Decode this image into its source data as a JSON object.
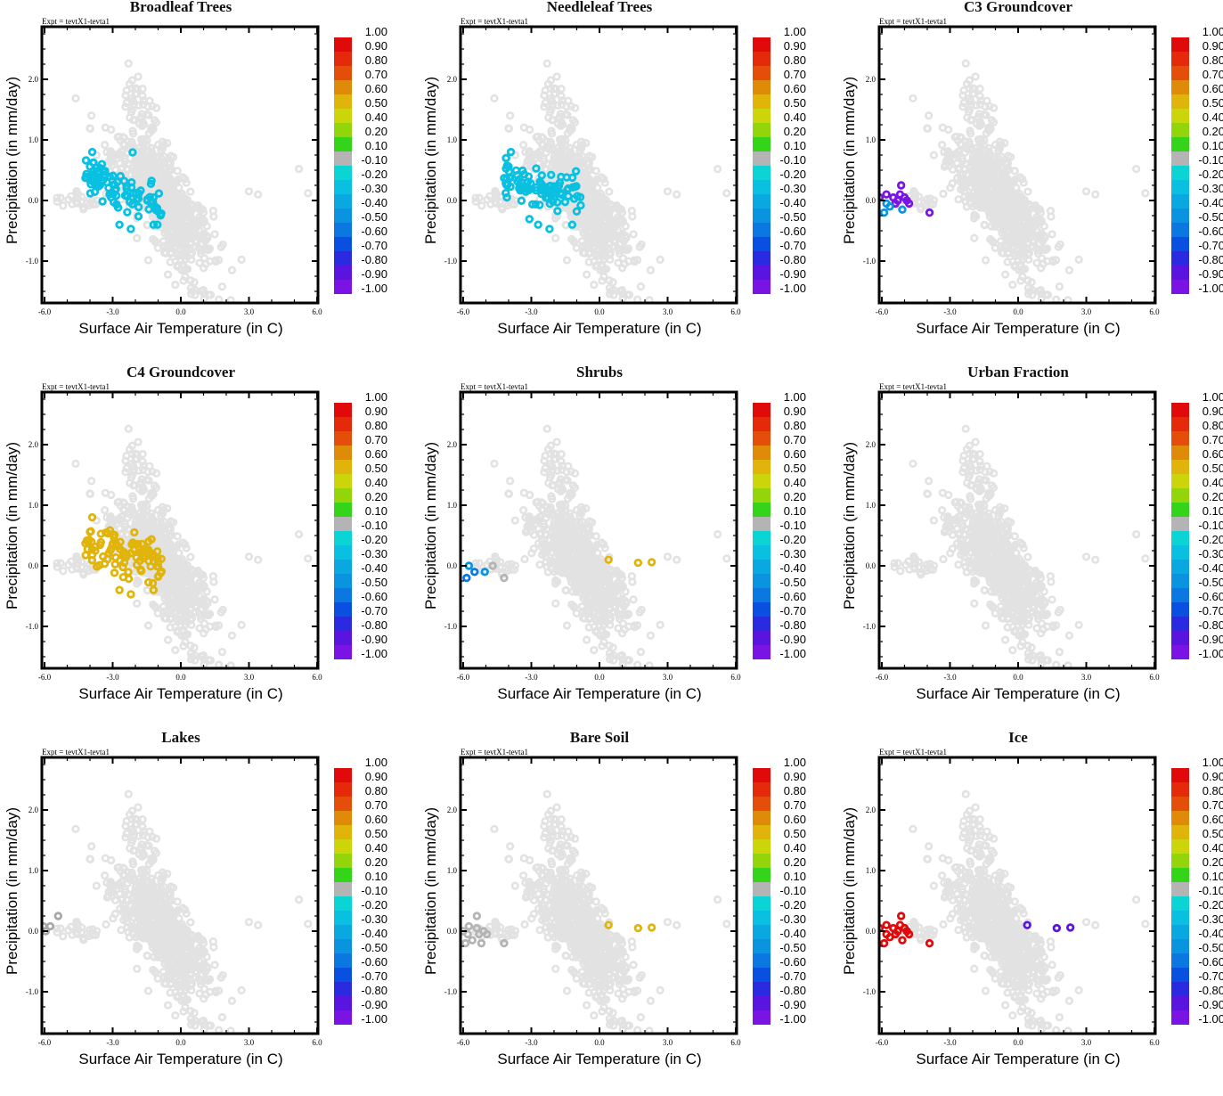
{
  "figure": {
    "expt_label": "Expt = tevtX1-tevta1",
    "xlabel": "Surface Air Temperature (in C)",
    "ylabel": "Precipitation (in mm/day)",
    "x_ticks": [
      "-6.0",
      "-3.0",
      "0.0",
      "3.0",
      "6.0"
    ],
    "y_ticks": [
      "2.0",
      "1.0",
      "0.0",
      "-1.0"
    ],
    "colorbar": {
      "labels": [
        "1.00",
        "0.90",
        "0.80",
        "0.70",
        "0.60",
        "0.50",
        "0.40",
        "0.20",
        "0.10",
        "-0.10",
        "-0.20",
        "-0.30",
        "-0.40",
        "-0.50",
        "-0.60",
        "-0.70",
        "-0.80",
        "-0.90",
        "-1.00"
      ],
      "colors": [
        "#e00a0a",
        "#e42a0a",
        "#e44d0a",
        "#e08a0a",
        "#e0b40a",
        "#ccd40a",
        "#94d40a",
        "#34d41a",
        "#b4b4b4",
        "#0ad4d4",
        "#0ac0e0",
        "#0aa8e0",
        "#0a94e0",
        "#0a78e0",
        "#0a50e0",
        "#2a2ae0",
        "#5a14e0",
        "#7a14e4"
      ]
    }
  },
  "chart_data": [
    {
      "type": "scatter",
      "title": "Broadleaf Trees",
      "xlim": [
        -6,
        6
      ],
      "ylim": [
        -1.7,
        2.85
      ],
      "highlight_color": "#0ac0e0",
      "highlight_region": {
        "x": [
          -4.2,
          -0.8
        ],
        "y": [
          -0.5,
          0.8
        ]
      },
      "highlight_value": -0.25,
      "highlight_count": 90
    },
    {
      "type": "scatter",
      "title": "Needleleaf Trees",
      "xlim": [
        -6,
        6
      ],
      "ylim": [
        -1.7,
        2.85
      ],
      "highlight_color": "#0ac0e0",
      "highlight_region": {
        "x": [
          -4.2,
          -0.8
        ],
        "y": [
          -0.5,
          0.8
        ]
      },
      "highlight_value": -0.25,
      "highlight_count": 90
    },
    {
      "type": "scatter",
      "title": "C3 Groundcover",
      "xlim": [
        -6,
        6
      ],
      "ylim": [
        -1.7,
        2.85
      ],
      "points": [
        {
          "x": -6.1,
          "y": 0.05,
          "c": "#7a14e4"
        },
        {
          "x": -5.8,
          "y": 0.1,
          "c": "#7a14e4"
        },
        {
          "x": -5.5,
          "y": 0.05,
          "c": "#7a14e4"
        },
        {
          "x": -5.3,
          "y": 0.0,
          "c": "#7a14e4"
        },
        {
          "x": -5.2,
          "y": 0.1,
          "c": "#7a14e4"
        },
        {
          "x": -5.0,
          "y": 0.05,
          "c": "#7a14e4"
        },
        {
          "x": -4.8,
          "y": -0.05,
          "c": "#7a14e4"
        },
        {
          "x": -5.15,
          "y": 0.25,
          "c": "#7a14e4"
        },
        {
          "x": -5.4,
          "y": -0.05,
          "c": "#7a14e4"
        },
        {
          "x": -4.9,
          "y": 0.0,
          "c": "#7a14e4"
        },
        {
          "x": -3.9,
          "y": -0.2,
          "c": "#7a14e4"
        },
        {
          "x": -5.8,
          "y": -0.05,
          "c": "#0a94e0"
        },
        {
          "x": -5.65,
          "y": -0.1,
          "c": "#0a94e0"
        },
        {
          "x": -5.9,
          "y": -0.2,
          "c": "#0a94e0"
        },
        {
          "x": -5.1,
          "y": -0.15,
          "c": "#0a94e0"
        }
      ]
    },
    {
      "type": "scatter",
      "title": "C4 Groundcover",
      "xlim": [
        -6,
        6
      ],
      "ylim": [
        -1.7,
        2.85
      ],
      "highlight_color": "#e0b40a",
      "highlight_region": {
        "x": [
          -4.2,
          -0.8
        ],
        "y": [
          -0.5,
          0.8
        ]
      },
      "highlight_value": 0.5,
      "highlight_count": 90
    },
    {
      "type": "scatter",
      "title": "Shrubs",
      "xlim": [
        -6,
        6
      ],
      "ylim": [
        -1.7,
        2.85
      ],
      "points": [
        {
          "x": -5.75,
          "y": 0.0,
          "c": "#0a94e0"
        },
        {
          "x": -5.5,
          "y": -0.1,
          "c": "#0a78e0"
        },
        {
          "x": -5.05,
          "y": -0.1,
          "c": "#0a94e0"
        },
        {
          "x": -5.85,
          "y": -0.2,
          "c": "#0a78e0"
        },
        {
          "x": -4.7,
          "y": 0.0,
          "c": "#b4b4b4"
        },
        {
          "x": -4.2,
          "y": -0.2,
          "c": "#b4b4b4"
        },
        {
          "x": 0.4,
          "y": 0.1,
          "c": "#e0b40a"
        },
        {
          "x": 1.7,
          "y": 0.05,
          "c": "#e0b40a"
        },
        {
          "x": 2.3,
          "y": 0.06,
          "c": "#e0b40a"
        }
      ]
    },
    {
      "type": "scatter",
      "title": "Urban Fraction",
      "xlim": [
        -6,
        6
      ],
      "ylim": [
        -1.7,
        2.85
      ],
      "points": []
    },
    {
      "type": "scatter",
      "title": "Lakes",
      "xlim": [
        -6,
        6
      ],
      "ylim": [
        -1.7,
        2.85
      ],
      "points": [
        {
          "x": -5.4,
          "y": 0.25,
          "c": "#a8a8a8"
        },
        {
          "x": -5.75,
          "y": 0.08,
          "c": "#a8a8a8"
        },
        {
          "x": -6.05,
          "y": 0.08,
          "c": "#a8a8a8"
        },
        {
          "x": -5.95,
          "y": 0.0,
          "c": "#a8a8a8"
        }
      ]
    },
    {
      "type": "scatter",
      "title": "Bare Soil",
      "xlim": [
        -6,
        6
      ],
      "ylim": [
        -1.7,
        2.85
      ],
      "points": [
        {
          "x": -5.4,
          "y": 0.25,
          "c": "#b4b4b4"
        },
        {
          "x": -5.75,
          "y": 0.08,
          "c": "#b4b4b4"
        },
        {
          "x": -6.0,
          "y": 0.0,
          "c": "#b4b4b4"
        },
        {
          "x": -5.8,
          "y": -0.05,
          "c": "#b4b4b4"
        },
        {
          "x": -5.6,
          "y": -0.15,
          "c": "#b4b4b4"
        },
        {
          "x": -5.4,
          "y": 0.05,
          "c": "#b4b4b4"
        },
        {
          "x": -5.3,
          "y": -0.05,
          "c": "#b4b4b4"
        },
        {
          "x": -5.1,
          "y": 0.0,
          "c": "#b4b4b4"
        },
        {
          "x": -4.95,
          "y": -0.05,
          "c": "#b4b4b4"
        },
        {
          "x": -5.2,
          "y": -0.2,
          "c": "#b4b4b4"
        },
        {
          "x": -5.9,
          "y": -0.2,
          "c": "#b4b4b4"
        },
        {
          "x": -4.2,
          "y": -0.2,
          "c": "#b4b4b4"
        },
        {
          "x": 0.4,
          "y": 0.1,
          "c": "#e0b40a"
        },
        {
          "x": 1.7,
          "y": 0.05,
          "c": "#e0b40a"
        },
        {
          "x": 2.3,
          "y": 0.06,
          "c": "#e0b40a"
        }
      ]
    },
    {
      "type": "scatter",
      "title": "Ice",
      "xlim": [
        -6,
        6
      ],
      "ylim": [
        -1.7,
        2.85
      ],
      "points": [
        {
          "x": -6.1,
          "y": 0.05,
          "c": "#e00a0a"
        },
        {
          "x": -5.8,
          "y": 0.1,
          "c": "#e00a0a"
        },
        {
          "x": -5.5,
          "y": 0.05,
          "c": "#e00a0a"
        },
        {
          "x": -5.3,
          "y": 0.0,
          "c": "#e00a0a"
        },
        {
          "x": -5.2,
          "y": 0.1,
          "c": "#e00a0a"
        },
        {
          "x": -5.0,
          "y": 0.05,
          "c": "#e00a0a"
        },
        {
          "x": -4.8,
          "y": -0.05,
          "c": "#e00a0a"
        },
        {
          "x": -5.15,
          "y": 0.25,
          "c": "#e00a0a"
        },
        {
          "x": -5.4,
          "y": -0.05,
          "c": "#e00a0a"
        },
        {
          "x": -4.9,
          "y": 0.0,
          "c": "#e00a0a"
        },
        {
          "x": -3.9,
          "y": -0.2,
          "c": "#e00a0a"
        },
        {
          "x": -5.8,
          "y": -0.05,
          "c": "#e00a0a"
        },
        {
          "x": -5.65,
          "y": -0.1,
          "c": "#e00a0a"
        },
        {
          "x": -5.9,
          "y": -0.2,
          "c": "#e00a0a"
        },
        {
          "x": -5.1,
          "y": -0.15,
          "c": "#e00a0a"
        },
        {
          "x": 0.4,
          "y": 0.1,
          "c": "#5a14e0"
        },
        {
          "x": 1.7,
          "y": 0.05,
          "c": "#5a14e0"
        },
        {
          "x": 2.3,
          "y": 0.06,
          "c": "#5a14e0"
        }
      ]
    }
  ]
}
